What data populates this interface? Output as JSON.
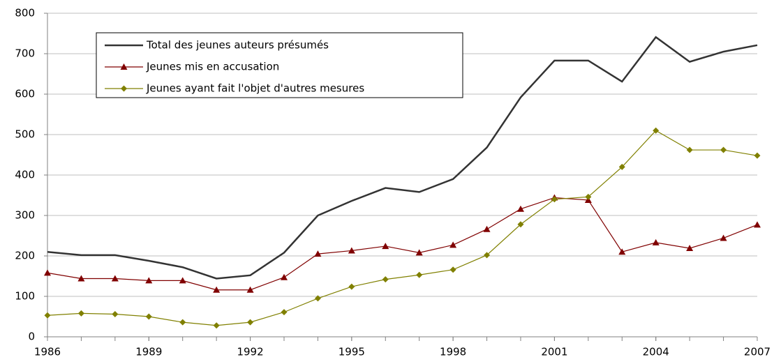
{
  "chart_data": {
    "type": "line",
    "x": [
      1986,
      1987,
      1988,
      1989,
      1990,
      1991,
      1992,
      1993,
      1994,
      1995,
      1996,
      1997,
      1998,
      1999,
      2000,
      2001,
      2002,
      2003,
      2004,
      2005,
      2006,
      2007
    ],
    "xlim": [
      1986,
      2007
    ],
    "xticks": [
      1986,
      1989,
      1992,
      1995,
      1998,
      2001,
      2004,
      2007
    ],
    "ylim": [
      0,
      800
    ],
    "yticks": [
      0,
      100,
      200,
      300,
      400,
      500,
      600,
      700,
      800
    ],
    "grid": true,
    "legend": "upper left",
    "series": [
      {
        "name": "Total des jeunes auteurs présumés",
        "color": "#333333",
        "marker": "none",
        "values": [
          210,
          202,
          202,
          188,
          172,
          144,
          152,
          208,
          300,
          336,
          368,
          358,
          390,
          468,
          592,
          683,
          683,
          631,
          741,
          680,
          705,
          721
        ]
      },
      {
        "name": "Jeunes mis en accusation",
        "color": "#800000",
        "marker": "triangle",
        "values": [
          158,
          144,
          144,
          139,
          139,
          116,
          116,
          147,
          205,
          213,
          224,
          208,
          227,
          266,
          316,
          344,
          338,
          210,
          233,
          219,
          244,
          277
        ]
      },
      {
        "name": "Jeunes ayant fait l'objet d'autres mesures",
        "color": "#808000",
        "marker": "diamond",
        "values": [
          53,
          58,
          56,
          50,
          36,
          28,
          36,
          61,
          95,
          124,
          142,
          153,
          166,
          202,
          278,
          340,
          346,
          420,
          510,
          462,
          462,
          448
        ]
      }
    ]
  }
}
